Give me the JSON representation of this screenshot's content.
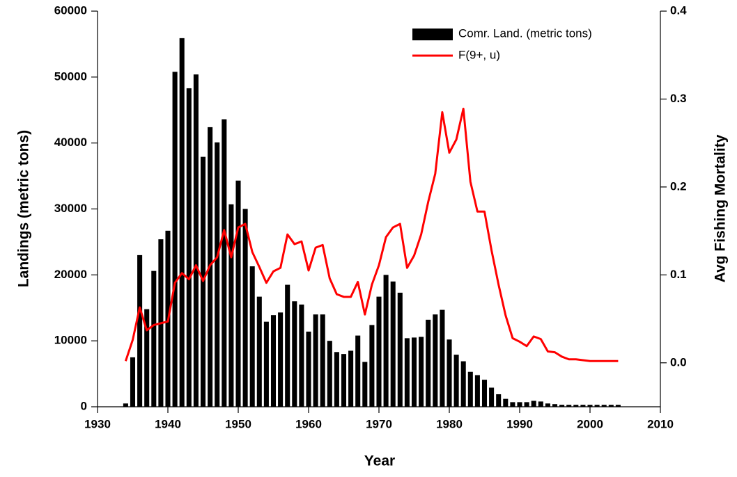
{
  "chart_data": {
    "type": "bar",
    "x_label": "Year",
    "y_label": "Landings (metric tons)",
    "y2_label": "Avg Fishing Mortality",
    "x": [
      1934,
      1935,
      1936,
      1937,
      1938,
      1939,
      1940,
      1941,
      1942,
      1943,
      1944,
      1945,
      1946,
      1947,
      1948,
      1949,
      1950,
      1951,
      1952,
      1953,
      1954,
      1955,
      1956,
      1957,
      1958,
      1959,
      1960,
      1961,
      1962,
      1963,
      1964,
      1965,
      1966,
      1967,
      1968,
      1969,
      1970,
      1971,
      1972,
      1973,
      1974,
      1975,
      1976,
      1977,
      1978,
      1979,
      1980,
      1981,
      1982,
      1983,
      1984,
      1985,
      1986,
      1987,
      1988,
      1989,
      1990,
      1991,
      1992,
      1993,
      1994,
      1995,
      1996,
      1997,
      1998,
      1999,
      2000,
      2001,
      2002,
      2003,
      2004
    ],
    "series": [
      {
        "name": "Comr. Land. (metric tons)",
        "type": "bar",
        "color": "#000000",
        "axis": "y",
        "values": [
          500,
          7500,
          23000,
          14800,
          20600,
          25400,
          26700,
          50800,
          55900,
          48300,
          50400,
          37900,
          42400,
          40100,
          43600,
          30700,
          34300,
          30000,
          21300,
          16700,
          12900,
          13900,
          14300,
          18500,
          16000,
          15500,
          11400,
          14000,
          14000,
          10000,
          8300,
          8000,
          8500,
          10800,
          6800,
          12400,
          16700,
          20000,
          19000,
          17300,
          10400,
          10500,
          10600,
          13200,
          14000,
          14700,
          10200,
          7900,
          6900,
          5300,
          4800,
          4100,
          2900,
          1900,
          1200,
          700,
          700,
          700,
          900,
          800,
          500,
          400,
          300,
          300,
          300,
          300,
          300,
          300,
          300,
          300,
          300
        ]
      },
      {
        "name": "F(9+, u)",
        "type": "line",
        "color": "#ff0000",
        "axis": "y2",
        "values": [
          0.002,
          0.026,
          0.063,
          0.037,
          0.043,
          0.045,
          0.047,
          0.091,
          0.102,
          0.095,
          0.111,
          0.093,
          0.111,
          0.12,
          0.151,
          0.12,
          0.154,
          0.158,
          0.126,
          0.109,
          0.091,
          0.104,
          0.108,
          0.146,
          0.135,
          0.138,
          0.105,
          0.131,
          0.134,
          0.096,
          0.078,
          0.075,
          0.075,
          0.092,
          0.055,
          0.089,
          0.111,
          0.143,
          0.154,
          0.158,
          0.108,
          0.122,
          0.146,
          0.183,
          0.215,
          0.285,
          0.239,
          0.254,
          0.289,
          0.206,
          0.172,
          0.172,
          0.128,
          0.089,
          0.054,
          0.028,
          0.024,
          0.019,
          0.03,
          0.027,
          0.013,
          0.012,
          0.007,
          0.004,
          0.004,
          0.003,
          0.002,
          0.002,
          0.002,
          0.002,
          0.002
        ]
      }
    ],
    "xlim": [
      1930,
      2010
    ],
    "xticks": [
      1930,
      1940,
      1950,
      1960,
      1970,
      1980,
      1990,
      2000,
      2010
    ],
    "ylim": [
      0,
      60000
    ],
    "yticks": [
      0,
      10000,
      20000,
      30000,
      40000,
      50000,
      60000
    ],
    "y2lim": [
      -0.05,
      0.4
    ],
    "y2ticks": [
      {
        "value": 0,
        "label": "0.0"
      },
      0.1,
      0.2,
      0.3,
      0.4
    ],
    "legend": "upper right",
    "grid": false
  }
}
